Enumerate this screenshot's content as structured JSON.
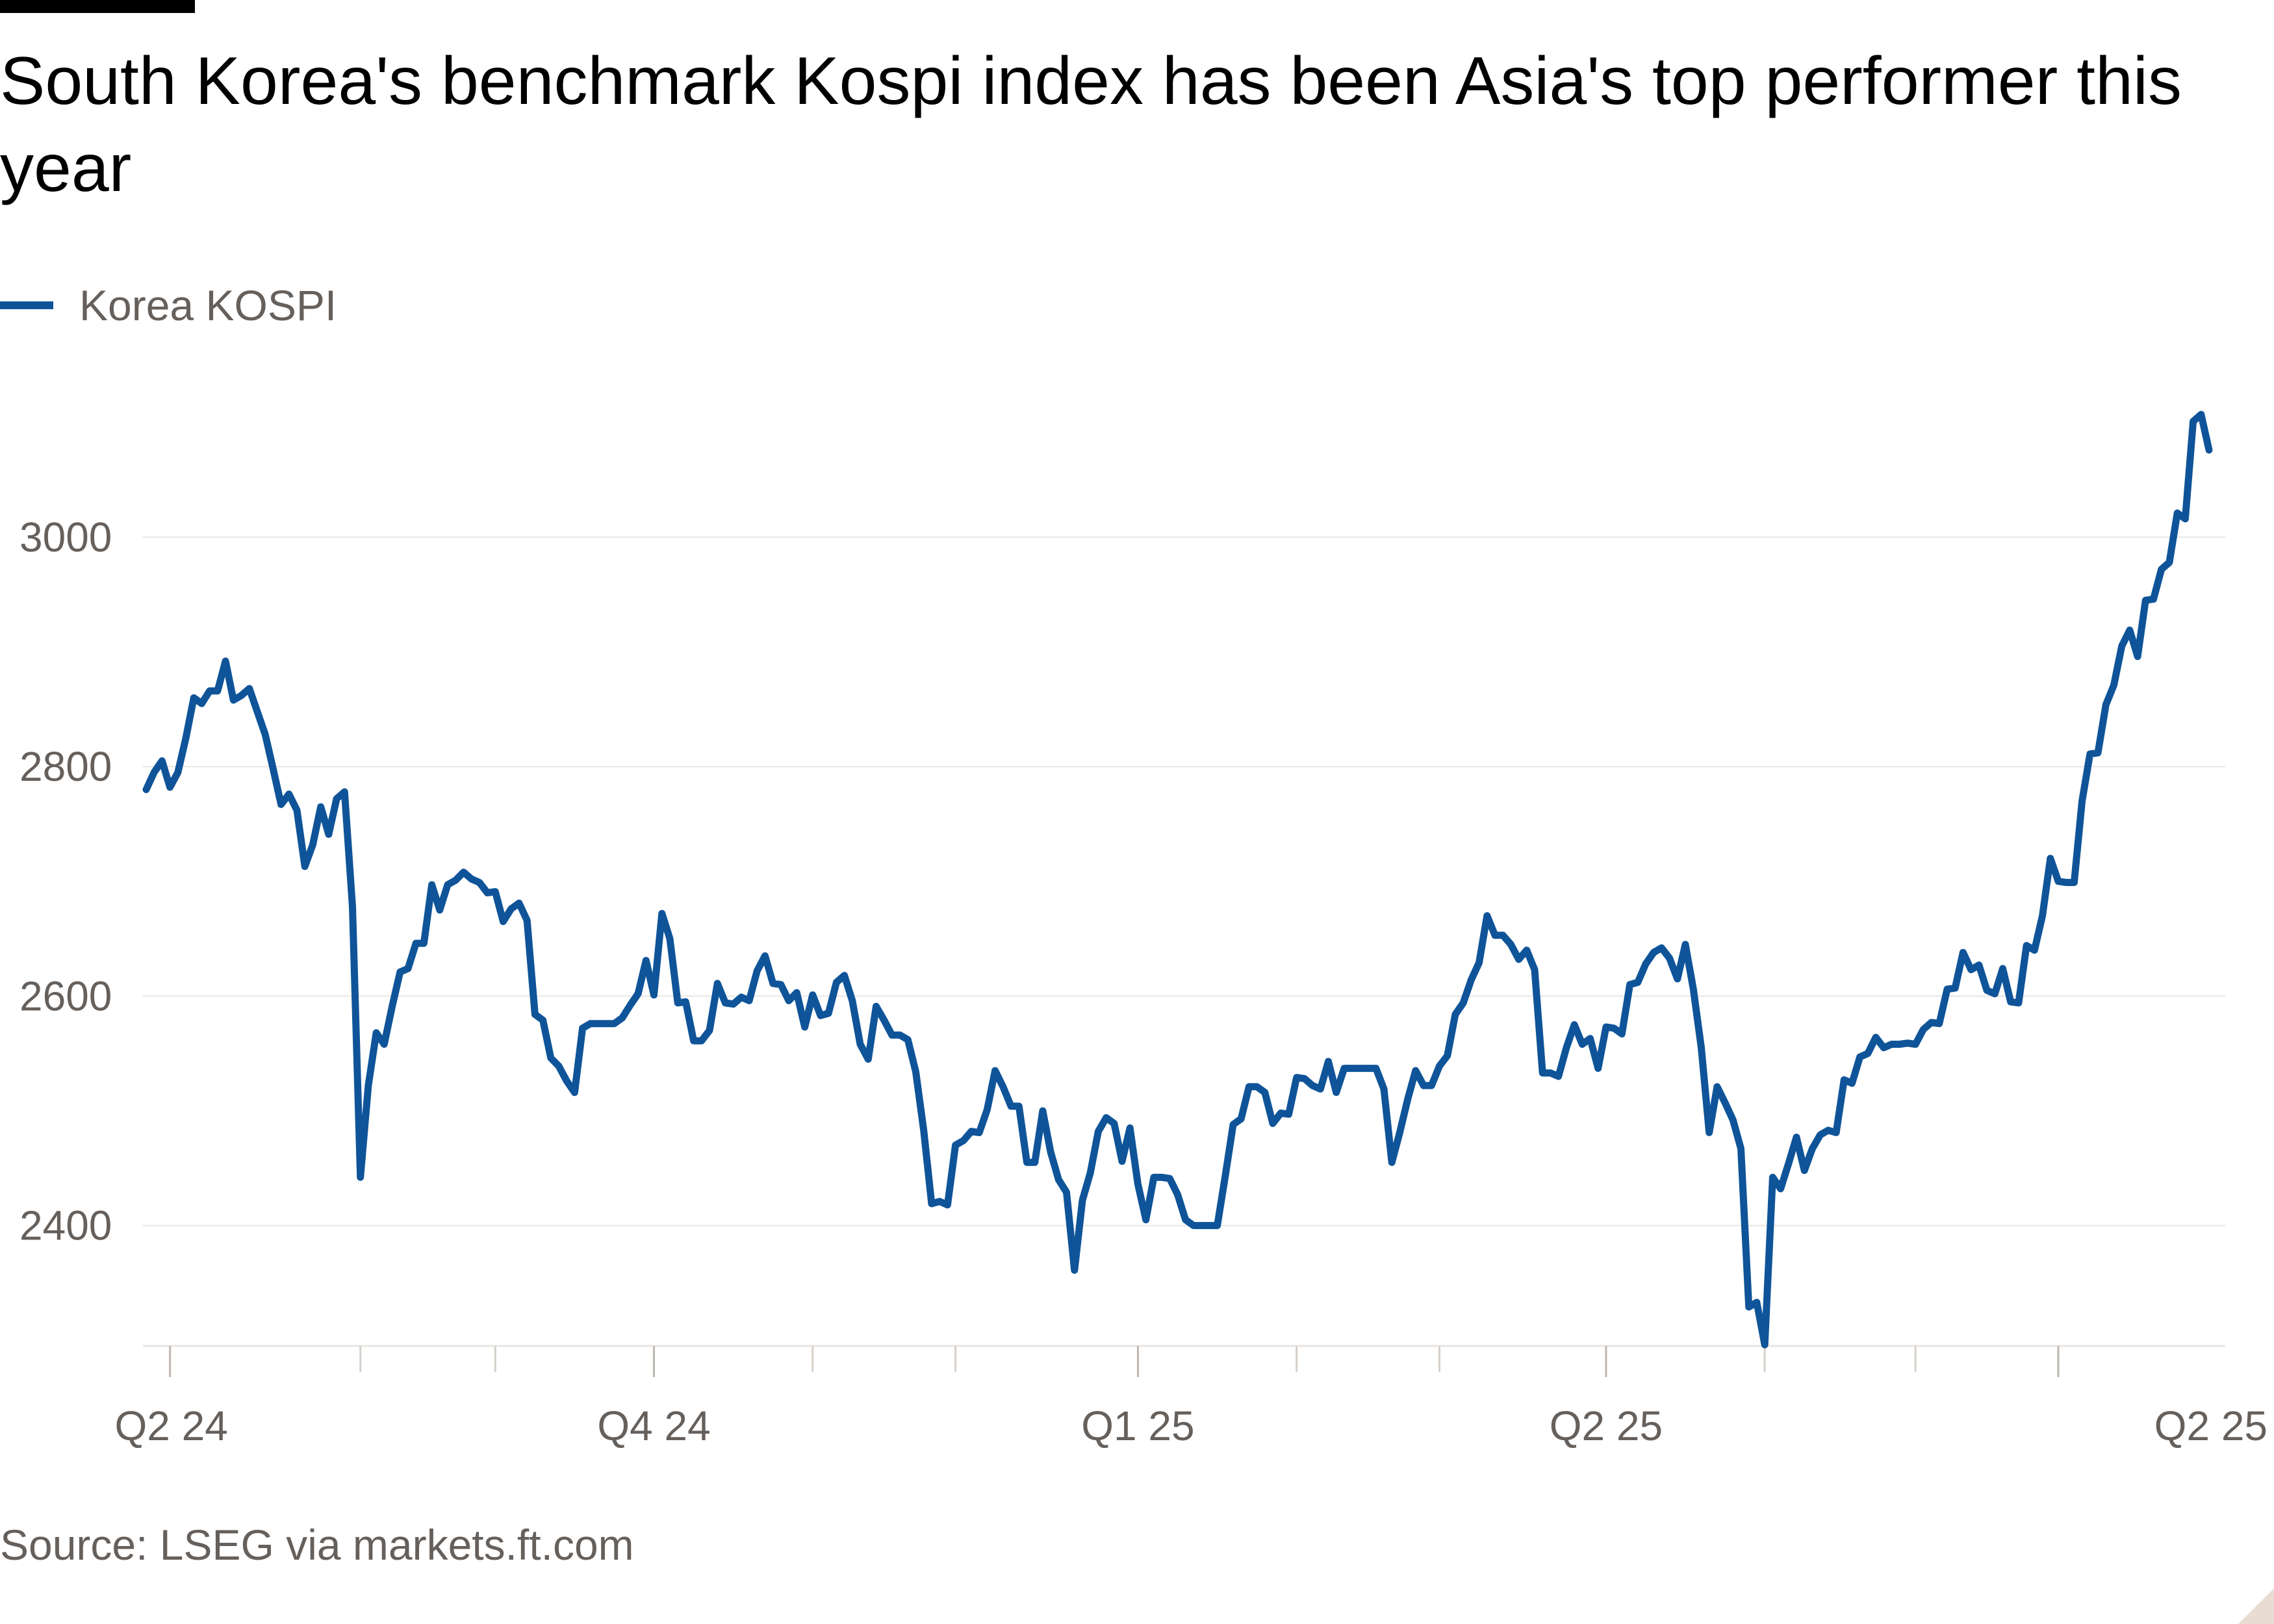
{
  "title": "South Korea's benchmark Kospi index has been Asia's top performer this year",
  "legend": {
    "label": "Korea KOSPI",
    "color": "#0f5499"
  },
  "source": "Source: LSEG via markets.ft.com",
  "chart_data": {
    "type": "line",
    "title": "South Korea's benchmark Kospi index has been Asia's top performer this year",
    "xlabel": "",
    "ylabel": "",
    "ylim": [
      2295,
      3120
    ],
    "yticks": [
      2400,
      2600,
      2800,
      3000
    ],
    "grid": true,
    "legend_position": "top-left",
    "xticks": [
      {
        "index": 3,
        "label": "Q2 24"
      },
      {
        "index": 64,
        "label": "Q4 24"
      },
      {
        "index": 125,
        "label": "Q1 25"
      },
      {
        "index": 184,
        "label": "Q2 25"
      },
      {
        "index": 241,
        "label": "Q2 25"
      }
    ],
    "minor_xticks": [
      27,
      44,
      84,
      102,
      145,
      163,
      204,
      223
    ],
    "series": [
      {
        "name": "Korea KOSPI",
        "color": "#0f5499",
        "values": [
          2780,
          2795,
          2805,
          2782,
          2795,
          2825,
          2860,
          2855,
          2866,
          2866,
          2892,
          2858,
          2862,
          2868,
          2848,
          2828,
          2798,
          2767,
          2776,
          2762,
          2713,
          2732,
          2765,
          2741,
          2772,
          2778,
          2678,
          2442,
          2522,
          2568,
          2558,
          2591,
          2621,
          2624,
          2646,
          2646,
          2697,
          2675,
          2697,
          2701,
          2708,
          2702,
          2699,
          2690,
          2691,
          2665,
          2676,
          2681,
          2666,
          2584,
          2579,
          2546,
          2539,
          2526,
          2516,
          2572,
          2576,
          2576,
          2576,
          2576,
          2581,
          2592,
          2602,
          2631,
          2601,
          2672,
          2650,
          2594,
          2595,
          2561,
          2561,
          2570,
          2611,
          2594,
          2593,
          2599,
          2596,
          2622,
          2635,
          2611,
          2610,
          2596,
          2603,
          2573,
          2601,
          2583,
          2585,
          2612,
          2618,
          2596,
          2558,
          2545,
          2591,
          2579,
          2566,
          2566,
          2562,
          2534,
          2483,
          2419,
          2421,
          2418,
          2470,
          2474,
          2482,
          2481,
          2501,
          2535,
          2521,
          2504,
          2504,
          2455,
          2455,
          2500,
          2464,
          2440,
          2429,
          2361,
          2422,
          2446,
          2482,
          2494,
          2489,
          2456,
          2485,
          2436,
          2405,
          2442,
          2442,
          2441,
          2427,
          2405,
          2400,
          2400,
          2400,
          2400,
          2443,
          2488,
          2493,
          2521,
          2521,
          2516,
          2489,
          2498,
          2497,
          2529,
          2528,
          2522,
          2519,
          2543,
          2516,
          2537,
          2537,
          2537,
          2537,
          2537,
          2519,
          2455,
          2481,
          2510,
          2535,
          2522,
          2522,
          2539,
          2548,
          2584,
          2594,
          2614,
          2629,
          2670,
          2653,
          2653,
          2645,
          2632,
          2640,
          2623,
          2533,
          2533,
          2530,
          2555,
          2575,
          2558,
          2563,
          2537,
          2573,
          2572,
          2567,
          2610,
          2612,
          2628,
          2638,
          2642,
          2633,
          2615,
          2645,
          2606,
          2555,
          2481,
          2521,
          2507,
          2492,
          2467,
          2329,
          2333,
          2296,
          2442,
          2432,
          2454,
          2477,
          2448,
          2467,
          2479,
          2483,
          2481,
          2527,
          2524,
          2547,
          2550,
          2564,
          2555,
          2558,
          2558,
          2559,
          2558,
          2571,
          2577,
          2576,
          2606,
          2607,
          2638,
          2623,
          2627,
          2605,
          2602,
          2624,
          2595,
          2594,
          2644,
          2640,
          2670,
          2720,
          2700,
          2699,
          2699,
          2770,
          2811,
          2812,
          2854,
          2871,
          2905,
          2919,
          2896,
          2945,
          2946,
          2972,
          2978,
          3021,
          3016,
          3101,
          3107,
          3076
        ]
      }
    ]
  }
}
